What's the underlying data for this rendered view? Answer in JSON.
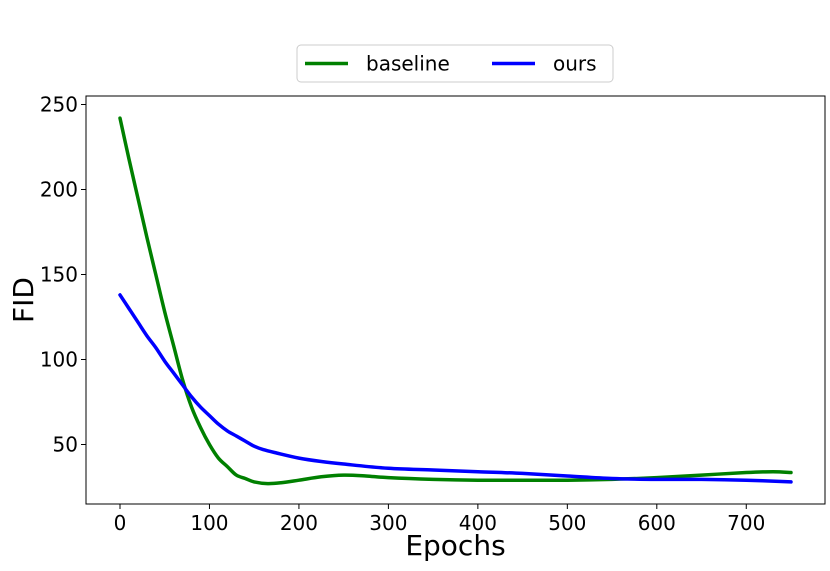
{
  "chart_data": {
    "type": "line",
    "title": "",
    "xlabel": "Epochs",
    "ylabel": "FID",
    "xlim": [
      -38,
      788
    ],
    "ylim": [
      15,
      255
    ],
    "xticks": [
      0,
      100,
      200,
      300,
      400,
      500,
      600,
      700
    ],
    "yticks": [
      50,
      100,
      150,
      200,
      250
    ],
    "grid": false,
    "legend": {
      "placement": "top-center",
      "ncol": 2
    },
    "series": [
      {
        "name": "baseline",
        "color": "#008000",
        "points": [
          [
            0,
            242
          ],
          [
            10,
            218
          ],
          [
            20,
            195
          ],
          [
            30,
            172
          ],
          [
            40,
            150
          ],
          [
            50,
            128
          ],
          [
            60,
            108
          ],
          [
            70,
            88
          ],
          [
            80,
            72
          ],
          [
            90,
            60
          ],
          [
            100,
            50
          ],
          [
            110,
            42
          ],
          [
            120,
            37
          ],
          [
            130,
            32
          ],
          [
            140,
            30
          ],
          [
            150,
            28
          ],
          [
            165,
            27
          ],
          [
            180,
            27.5
          ],
          [
            200,
            29
          ],
          [
            225,
            31
          ],
          [
            250,
            32
          ],
          [
            275,
            31.5
          ],
          [
            300,
            30.5
          ],
          [
            350,
            29.5
          ],
          [
            400,
            29
          ],
          [
            450,
            29
          ],
          [
            500,
            29
          ],
          [
            550,
            29.5
          ],
          [
            600,
            30.5
          ],
          [
            650,
            32
          ],
          [
            700,
            33.5
          ],
          [
            730,
            34
          ],
          [
            750,
            33.5
          ]
        ]
      },
      {
        "name": "ours",
        "color": "#0000ff",
        "points": [
          [
            0,
            138
          ],
          [
            10,
            130
          ],
          [
            20,
            122
          ],
          [
            30,
            114
          ],
          [
            40,
            107
          ],
          [
            50,
            99
          ],
          [
            60,
            92
          ],
          [
            70,
            85
          ],
          [
            80,
            78
          ],
          [
            90,
            72
          ],
          [
            100,
            67
          ],
          [
            110,
            62
          ],
          [
            120,
            58
          ],
          [
            130,
            55
          ],
          [
            140,
            52
          ],
          [
            150,
            49
          ],
          [
            160,
            47
          ],
          [
            175,
            45
          ],
          [
            200,
            42
          ],
          [
            225,
            40
          ],
          [
            250,
            38.5
          ],
          [
            300,
            36
          ],
          [
            350,
            35
          ],
          [
            400,
            34
          ],
          [
            450,
            33
          ],
          [
            500,
            31.5
          ],
          [
            550,
            30
          ],
          [
            600,
            29.5
          ],
          [
            650,
            29.5
          ],
          [
            700,
            29
          ],
          [
            750,
            28
          ]
        ]
      }
    ]
  }
}
